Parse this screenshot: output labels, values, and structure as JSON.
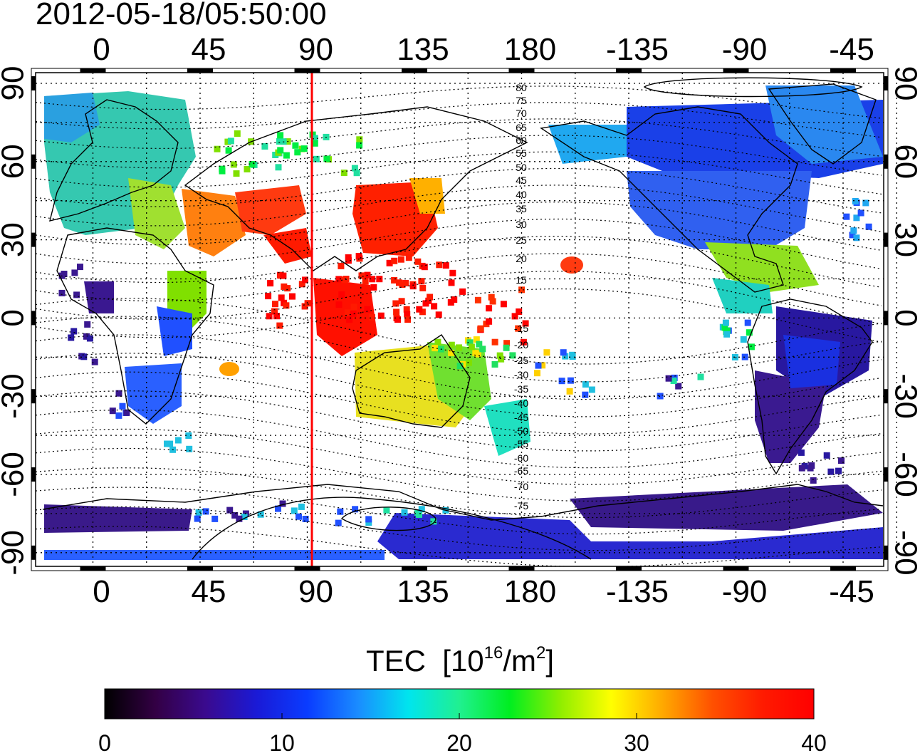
{
  "timestamp": "2012-05-18/05:50:00",
  "colorbar": {
    "title_main": "TEC",
    "title_unit_prefix": "[10",
    "title_unit_exp": "16",
    "title_unit_mid": "/m",
    "title_unit_exp2": "2",
    "title_unit_suffix": "]",
    "ticks": [
      "0",
      "10",
      "20",
      "30",
      "40"
    ],
    "stops": [
      "#000000",
      "#330044",
      "#3a0a8f",
      "#1a1ad6",
      "#0a3cff",
      "#1a8cff",
      "#00e5ee",
      "#20f090",
      "#00ee20",
      "#90ee00",
      "#ffff00",
      "#ffaa00",
      "#ff5000",
      "#ff1a00",
      "#ff0000"
    ]
  },
  "map": {
    "top_lon_labels": [
      "0",
      "45",
      "90",
      "135",
      "180",
      "-135",
      "-90",
      "-45"
    ],
    "bottom_lon_labels": [
      "0",
      "45",
      "90",
      "135",
      "180",
      "-135",
      "-90",
      "-45"
    ],
    "left_lat_labels": [
      "90",
      "60",
      "30",
      "0",
      "-30",
      "-60",
      "-90"
    ],
    "right_lat_labels": [
      "90",
      "60",
      "30",
      "0",
      "-30",
      "-60",
      "-90"
    ],
    "magnetic_lat_labels_north": [
      "80",
      "75",
      "70",
      "65",
      "60",
      "55",
      "50",
      "45",
      "40",
      "35",
      "30",
      "25",
      "20",
      "15"
    ],
    "magnetic_lat_labels_south": [
      "-15",
      "-20",
      "-25",
      "-30",
      "-35",
      "-40",
      "-45",
      "-50",
      "-55",
      "-60",
      "-65",
      "-70",
      "-75"
    ],
    "subsolar_longitude_line_color": "#ff0000",
    "grid": "dotted"
  }
}
